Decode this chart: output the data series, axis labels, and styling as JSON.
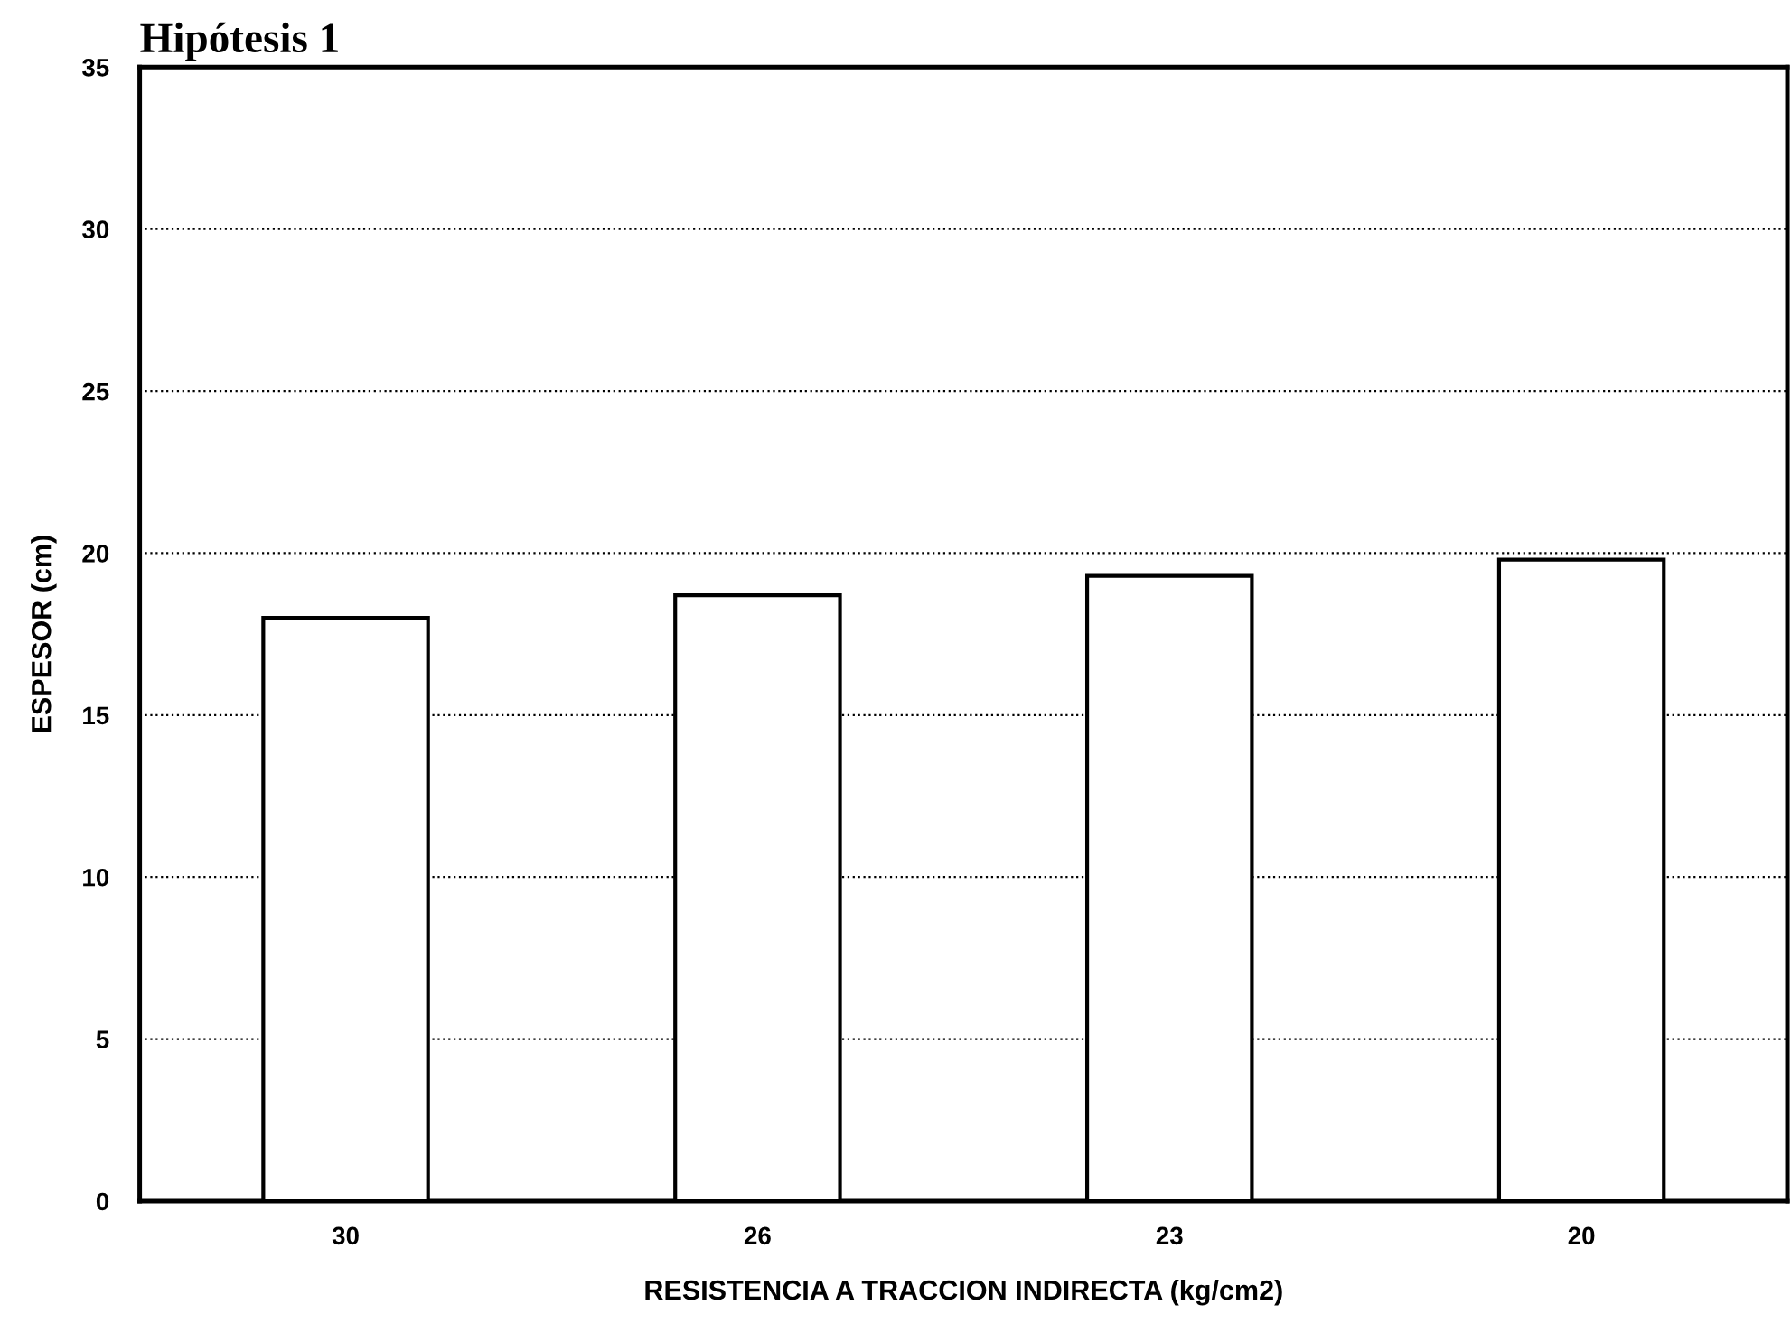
{
  "chart_data": {
    "type": "bar",
    "title": "Hipótesis 1",
    "xlabel": "RESISTENCIA A TRACCION INDIRECTA (kg/cm2)",
    "ylabel": "ESPESOR (cm)",
    "categories": [
      "30",
      "26",
      "23",
      "20"
    ],
    "values": [
      18.0,
      18.7,
      19.3,
      19.8
    ],
    "color": "#ffffff",
    "ylim": [
      0,
      35
    ],
    "yticks": [
      0,
      5,
      10,
      15,
      20,
      25,
      30,
      35
    ],
    "grid": "y",
    "line_style": "dotted"
  }
}
